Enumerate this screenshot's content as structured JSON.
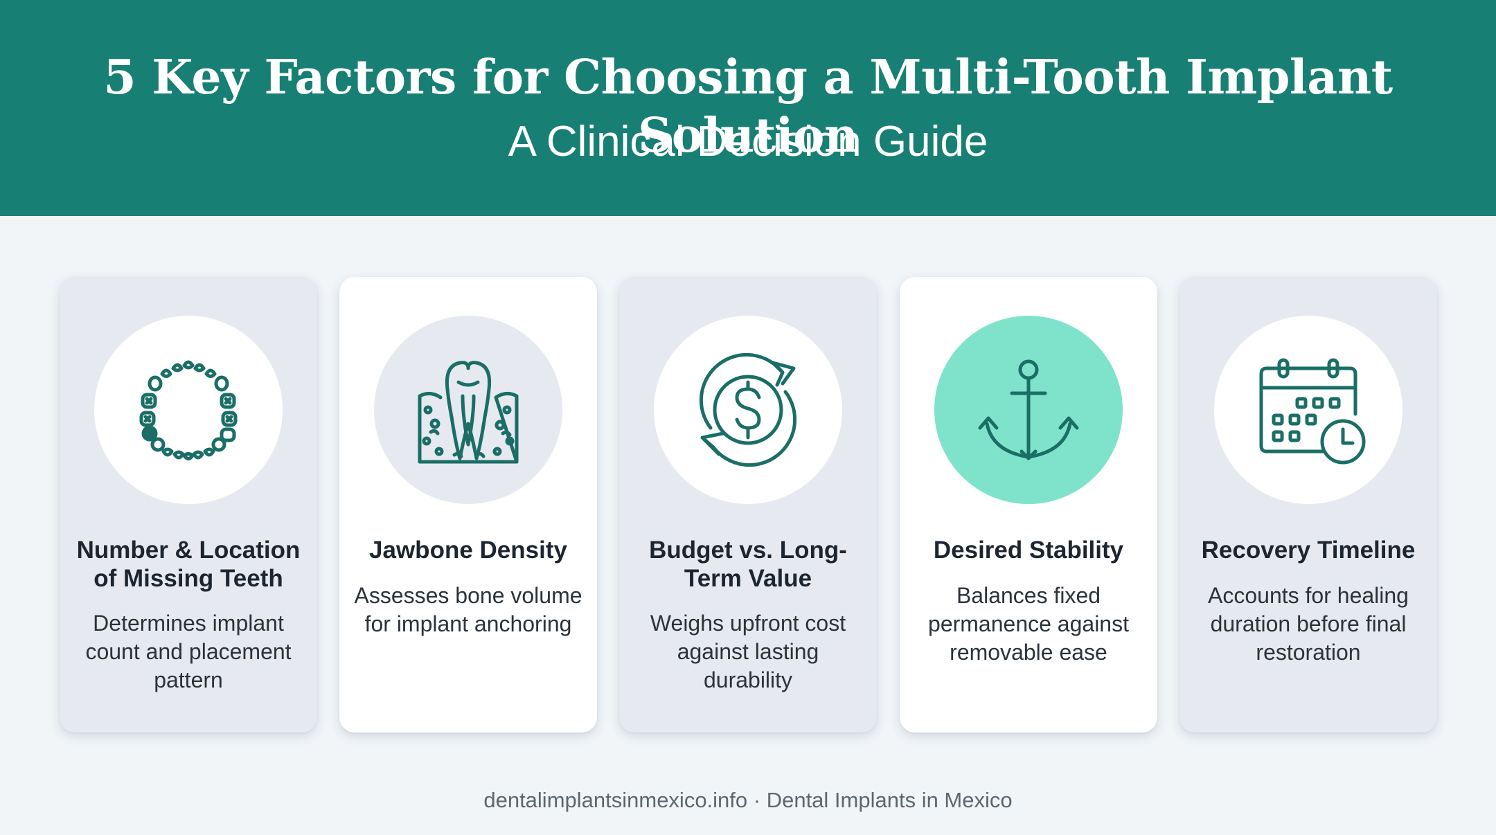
{
  "header": {
    "title": "5 Key Factors for Choosing a Multi-Tooth Implant Solution",
    "subtitle": "A Clinical Decision Guide"
  },
  "colors": {
    "header_bg": "#177f73",
    "icon_stroke": "#1a6e66",
    "accent_circle": "#7fe3cc",
    "tinted_card": "#e6eaf0",
    "page_bg": "#f1f5f8"
  },
  "cards": [
    {
      "icon": "dental-arch-icon",
      "title": "Number & Location of Missing Teeth",
      "description": "Determines implant count and placement pattern"
    },
    {
      "icon": "tooth-root-bone-icon",
      "title": "Jawbone Density",
      "description": "Assesses bone volume for implant anchoring"
    },
    {
      "icon": "dollar-cycle-icon",
      "title": "Budget vs. Long-Term Value",
      "description": "Weighs upfront cost against lasting durability"
    },
    {
      "icon": "anchor-icon",
      "title": "Desired Stability",
      "description": "Balances fixed permanence against removable ease"
    },
    {
      "icon": "calendar-clock-icon",
      "title": "Recovery Timeline",
      "description": "Accounts for healing duration before final restoration"
    }
  ],
  "footer": {
    "text": "dentalimplantsinmexico.info · Dental Implants in Mexico"
  }
}
